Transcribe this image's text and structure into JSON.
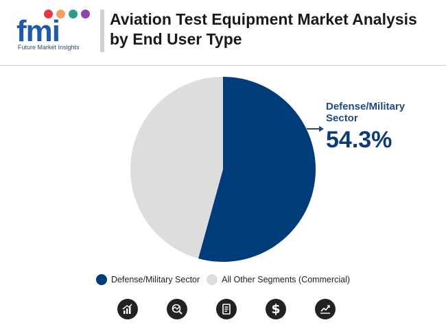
{
  "brand": {
    "logo_text": "fmi",
    "tagline": "Future Market Insights",
    "dot_colors": [
      "#e63946",
      "#f4a261",
      "#2a9d8f",
      "#8e44ad",
      "#e63946"
    ]
  },
  "title": "Aviation Test Equipment Market Analysis by End User Type",
  "chart_data": {
    "type": "pie",
    "title": "Aviation Test Equipment Market Analysis by End User Type",
    "slices": [
      {
        "label": "Defense/Military Sector",
        "value": 54.3,
        "color": "#003b7a"
      },
      {
        "label": "All Other Segments (Commercial)",
        "value": 45.7,
        "color": "#dddddd"
      }
    ],
    "callout": {
      "name": "Defense/Military Sector",
      "value": "54.3%"
    },
    "legend_position": "bottom"
  },
  "legend": [
    {
      "label": "Defense/Military Sector",
      "color": "#003b7a"
    },
    {
      "label": "All Other Segments (Commercial)",
      "color": "#dddddd"
    }
  ],
  "footer_icons": [
    "bar-chart-icon",
    "globe-search-icon",
    "document-icon",
    "dollar-icon",
    "trend-chart-icon"
  ]
}
